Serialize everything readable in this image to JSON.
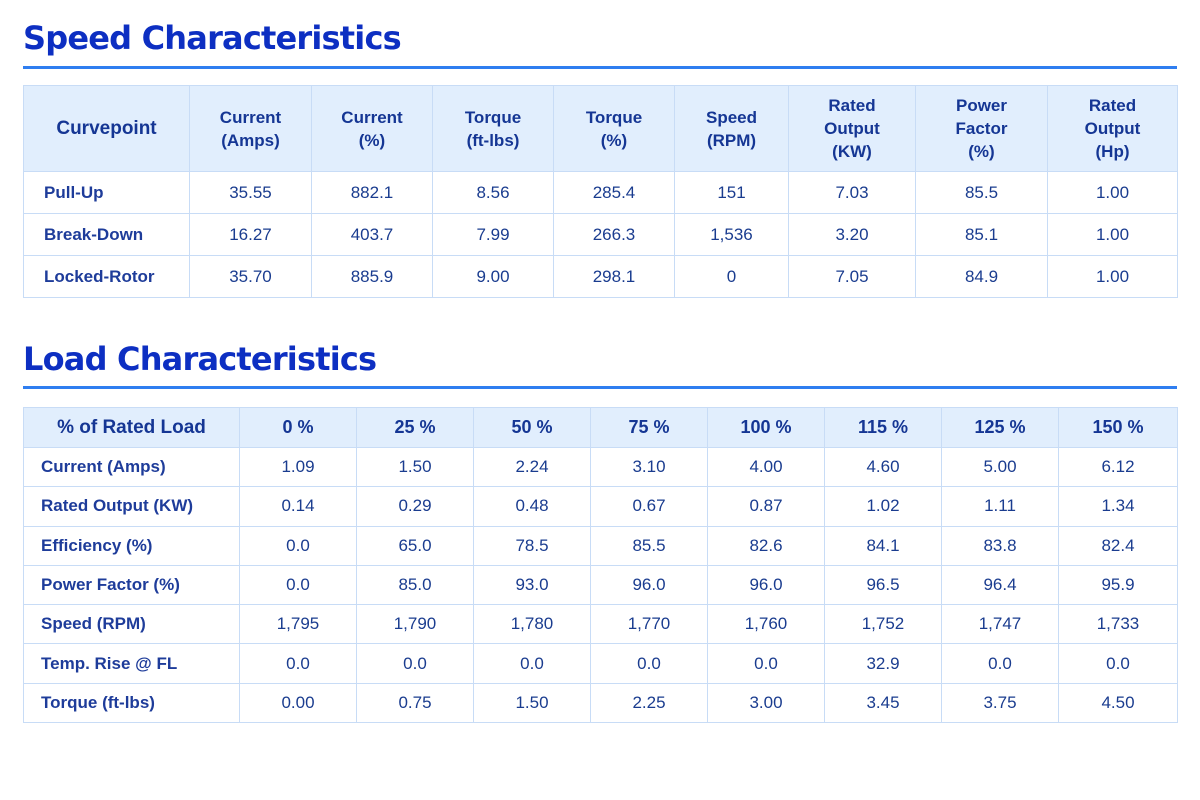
{
  "speed": {
    "title": "Speed Characteristics",
    "headers": [
      "Curvepoint",
      "Current\n(Amps)",
      "Current\n(%)",
      "Torque\n(ft-lbs)",
      "Torque\n(%)",
      "Speed\n(RPM)",
      "Rated\nOutput\n(KW)",
      "Power\nFactor\n(%)",
      "Rated\nOutput\n(Hp)"
    ],
    "rows": [
      [
        "Pull-Up",
        "35.55",
        "882.1",
        "8.56",
        "285.4",
        "151",
        "7.03",
        "85.5",
        "1.00"
      ],
      [
        "Break-Down",
        "16.27",
        "403.7",
        "7.99",
        "266.3",
        "1,536",
        "3.20",
        "85.1",
        "1.00"
      ],
      [
        "Locked-Rotor",
        "35.70",
        "885.9",
        "9.00",
        "298.1",
        "0",
        "7.05",
        "84.9",
        "1.00"
      ]
    ]
  },
  "load": {
    "title": "Load Characteristics",
    "headers": [
      "% of Rated Load",
      "0 %",
      "25 %",
      "50 %",
      "75 %",
      "100 %",
      "115 %",
      "125 %",
      "150 %"
    ],
    "rows": [
      [
        "Current (Amps)",
        "1.09",
        "1.50",
        "2.24",
        "3.10",
        "4.00",
        "4.60",
        "5.00",
        "6.12"
      ],
      [
        "Rated Output (KW)",
        "0.14",
        "0.29",
        "0.48",
        "0.67",
        "0.87",
        "1.02",
        "1.11",
        "1.34"
      ],
      [
        "Efficiency (%)",
        "0.0",
        "65.0",
        "78.5",
        "85.5",
        "82.6",
        "84.1",
        "83.8",
        "82.4"
      ],
      [
        "Power Factor (%)",
        "0.0",
        "85.0",
        "93.0",
        "96.0",
        "96.0",
        "96.5",
        "96.4",
        "95.9"
      ],
      [
        "Speed (RPM)",
        "1,795",
        "1,790",
        "1,780",
        "1,770",
        "1,760",
        "1,752",
        "1,747",
        "1,733"
      ],
      [
        "Temp. Rise @ FL",
        "0.0",
        "0.0",
        "0.0",
        "0.0",
        "0.0",
        "32.9",
        "0.0",
        "0.0"
      ],
      [
        "Torque (ft-lbs)",
        "0.00",
        "0.75",
        "1.50",
        "2.25",
        "3.00",
        "3.45",
        "3.75",
        "4.50"
      ]
    ]
  },
  "colors": {
    "title": "#0d2fc2",
    "rule": "#2f7ef0",
    "header_bg": "#e1eefd",
    "border": "#c8dcf6",
    "text": "#1a3c8f"
  }
}
